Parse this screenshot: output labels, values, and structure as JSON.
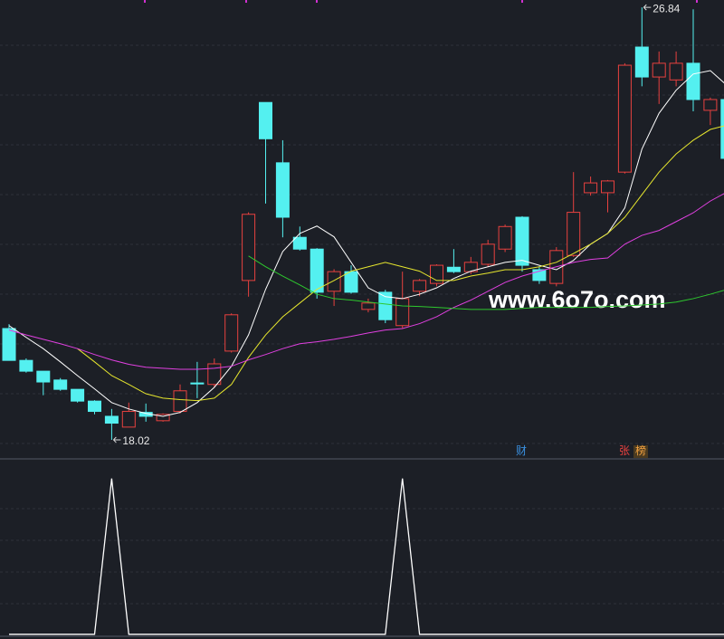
{
  "chart_data": [
    {
      "type": "candlestick",
      "up_color": "#e8413f",
      "down_color": "#54f0f0",
      "open": [
        20.29,
        19.64,
        19.42,
        19.24,
        19.05,
        18.81,
        18.5,
        18.28,
        18.58,
        18.41,
        18.6,
        19.18,
        19.15,
        19.83,
        21.27,
        24.9,
        23.67,
        22.15,
        21.91,
        21.05,
        21.45,
        20.68,
        21.03,
        20.35,
        21.05,
        21.21,
        21.54,
        21.45,
        21.6,
        21.91,
        22.56,
        21.49,
        21.21,
        21.78,
        23.06,
        23.06,
        23.48,
        26.03,
        25.42,
        25.36,
        25.7,
        24.74,
        24.96
      ],
      "high": [
        20.38,
        19.68,
        19.42,
        19.28,
        19.05,
        18.83,
        18.65,
        18.78,
        18.76,
        18.56,
        19.15,
        19.61,
        19.68,
        20.6,
        22.66,
        24.9,
        24.13,
        22.37,
        21.93,
        21.5,
        21.58,
        20.9,
        21.08,
        21.45,
        21.3,
        21.6,
        21.91,
        21.75,
        22.1,
        22.41,
        22.58,
        21.55,
        21.95,
        23.48,
        23.39,
        23.32,
        25.7,
        26.84,
        25.94,
        25.94,
        26.8,
        25.0,
        25.1
      ],
      "low": [
        19.64,
        19.39,
        18.93,
        19.02,
        18.78,
        18.54,
        18.02,
        18.28,
        18.39,
        18.39,
        18.56,
        18.87,
        19.1,
        19.8,
        20.94,
        22.84,
        22.15,
        21.88,
        20.9,
        20.75,
        21.0,
        20.62,
        20.4,
        20.3,
        20.95,
        21.15,
        21.42,
        21.4,
        21.55,
        21.85,
        21.45,
        21.2,
        21.15,
        21.75,
        23.0,
        22.66,
        23.45,
        25.23,
        24.87,
        25.23,
        24.72,
        24.44,
        23.7
      ],
      "close": [
        19.64,
        19.42,
        19.2,
        19.05,
        18.81,
        18.6,
        18.36,
        18.6,
        18.5,
        18.54,
        19.02,
        19.16,
        19.57,
        20.57,
        22.62,
        24.16,
        22.56,
        21.91,
        21.03,
        21.45,
        21.03,
        20.81,
        20.47,
        20.9,
        21.27,
        21.58,
        21.45,
        21.64,
        22.01,
        22.37,
        21.58,
        21.27,
        21.88,
        22.66,
        23.26,
        23.3,
        25.66,
        25.42,
        25.7,
        25.7,
        24.96,
        24.96,
        23.76
      ],
      "lines": [
        {
          "color": "#ffffff",
          "values": [
            20.35,
            20.11,
            19.88,
            19.61,
            19.33,
            19.06,
            18.78,
            18.65,
            18.56,
            18.5,
            18.58,
            18.78,
            19.09,
            19.52,
            20.16,
            21.09,
            21.86,
            22.23,
            22.38,
            22.16,
            21.64,
            21.12,
            20.94,
            20.9,
            20.99,
            21.12,
            21.31,
            21.46,
            21.55,
            21.64,
            21.68,
            21.58,
            21.49,
            21.68,
            22.01,
            22.23,
            22.75,
            23.95,
            24.68,
            25.15,
            25.48,
            25.55,
            25.24
          ]
        },
        {
          "color": "#e6e62e",
          "values": [
            null,
            null,
            null,
            null,
            19.88,
            19.61,
            19.33,
            19.15,
            18.96,
            18.87,
            18.84,
            18.82,
            18.87,
            19.15,
            19.7,
            20.16,
            20.53,
            20.81,
            21.09,
            21.27,
            21.46,
            21.55,
            21.64,
            21.55,
            21.46,
            21.27,
            21.27,
            21.36,
            21.42,
            21.49,
            21.49,
            21.55,
            21.64,
            21.82,
            22.01,
            22.23,
            22.56,
            23.02,
            23.48,
            23.85,
            24.13,
            24.35,
            24.44
          ]
        },
        {
          "color": "#e040e0",
          "values": [
            20.26,
            20.16,
            20.07,
            19.98,
            19.88,
            19.76,
            19.65,
            19.56,
            19.5,
            19.48,
            19.46,
            19.46,
            19.48,
            19.52,
            19.65,
            19.76,
            19.88,
            19.98,
            20.02,
            20.07,
            20.13,
            20.2,
            20.26,
            20.29,
            20.39,
            20.53,
            20.72,
            20.87,
            21.05,
            21.23,
            21.36,
            21.46,
            21.55,
            21.64,
            21.7,
            21.73,
            22.01,
            22.19,
            22.29,
            22.47,
            22.65,
            22.89,
            23.08
          ]
        },
        {
          "color": "#2ec82e",
          "values": [
            null,
            null,
            null,
            null,
            null,
            null,
            null,
            null,
            null,
            null,
            null,
            null,
            null,
            null,
            21.77,
            21.55,
            21.36,
            21.18,
            20.99,
            20.9,
            20.87,
            20.83,
            20.79,
            20.75,
            20.74,
            20.72,
            20.7,
            20.68,
            20.68,
            20.68,
            20.7,
            20.72,
            20.72,
            20.72,
            20.72,
            20.74,
            20.75,
            20.77,
            20.79,
            20.83,
            20.9,
            20.99,
            21.09
          ]
        }
      ],
      "ylim": [
        17.65,
        26.99
      ],
      "watermark": "www.6o7o.com",
      "flags": [
        "财",
        "张",
        "榜"
      ]
    },
    {
      "type": "line",
      "color": "#ffffff",
      "values": [
        0,
        0,
        0,
        0,
        0,
        0,
        1,
        0,
        0,
        0,
        0,
        0,
        0,
        0,
        0,
        0,
        0,
        0,
        0,
        0,
        0,
        0,
        0,
        1,
        0,
        0,
        0,
        0,
        0,
        0,
        0,
        0,
        0,
        0,
        0,
        0,
        0,
        0,
        0,
        0,
        0,
        0,
        0
      ],
      "ylim": [
        -0.03,
        1.12
      ]
    }
  ]
}
